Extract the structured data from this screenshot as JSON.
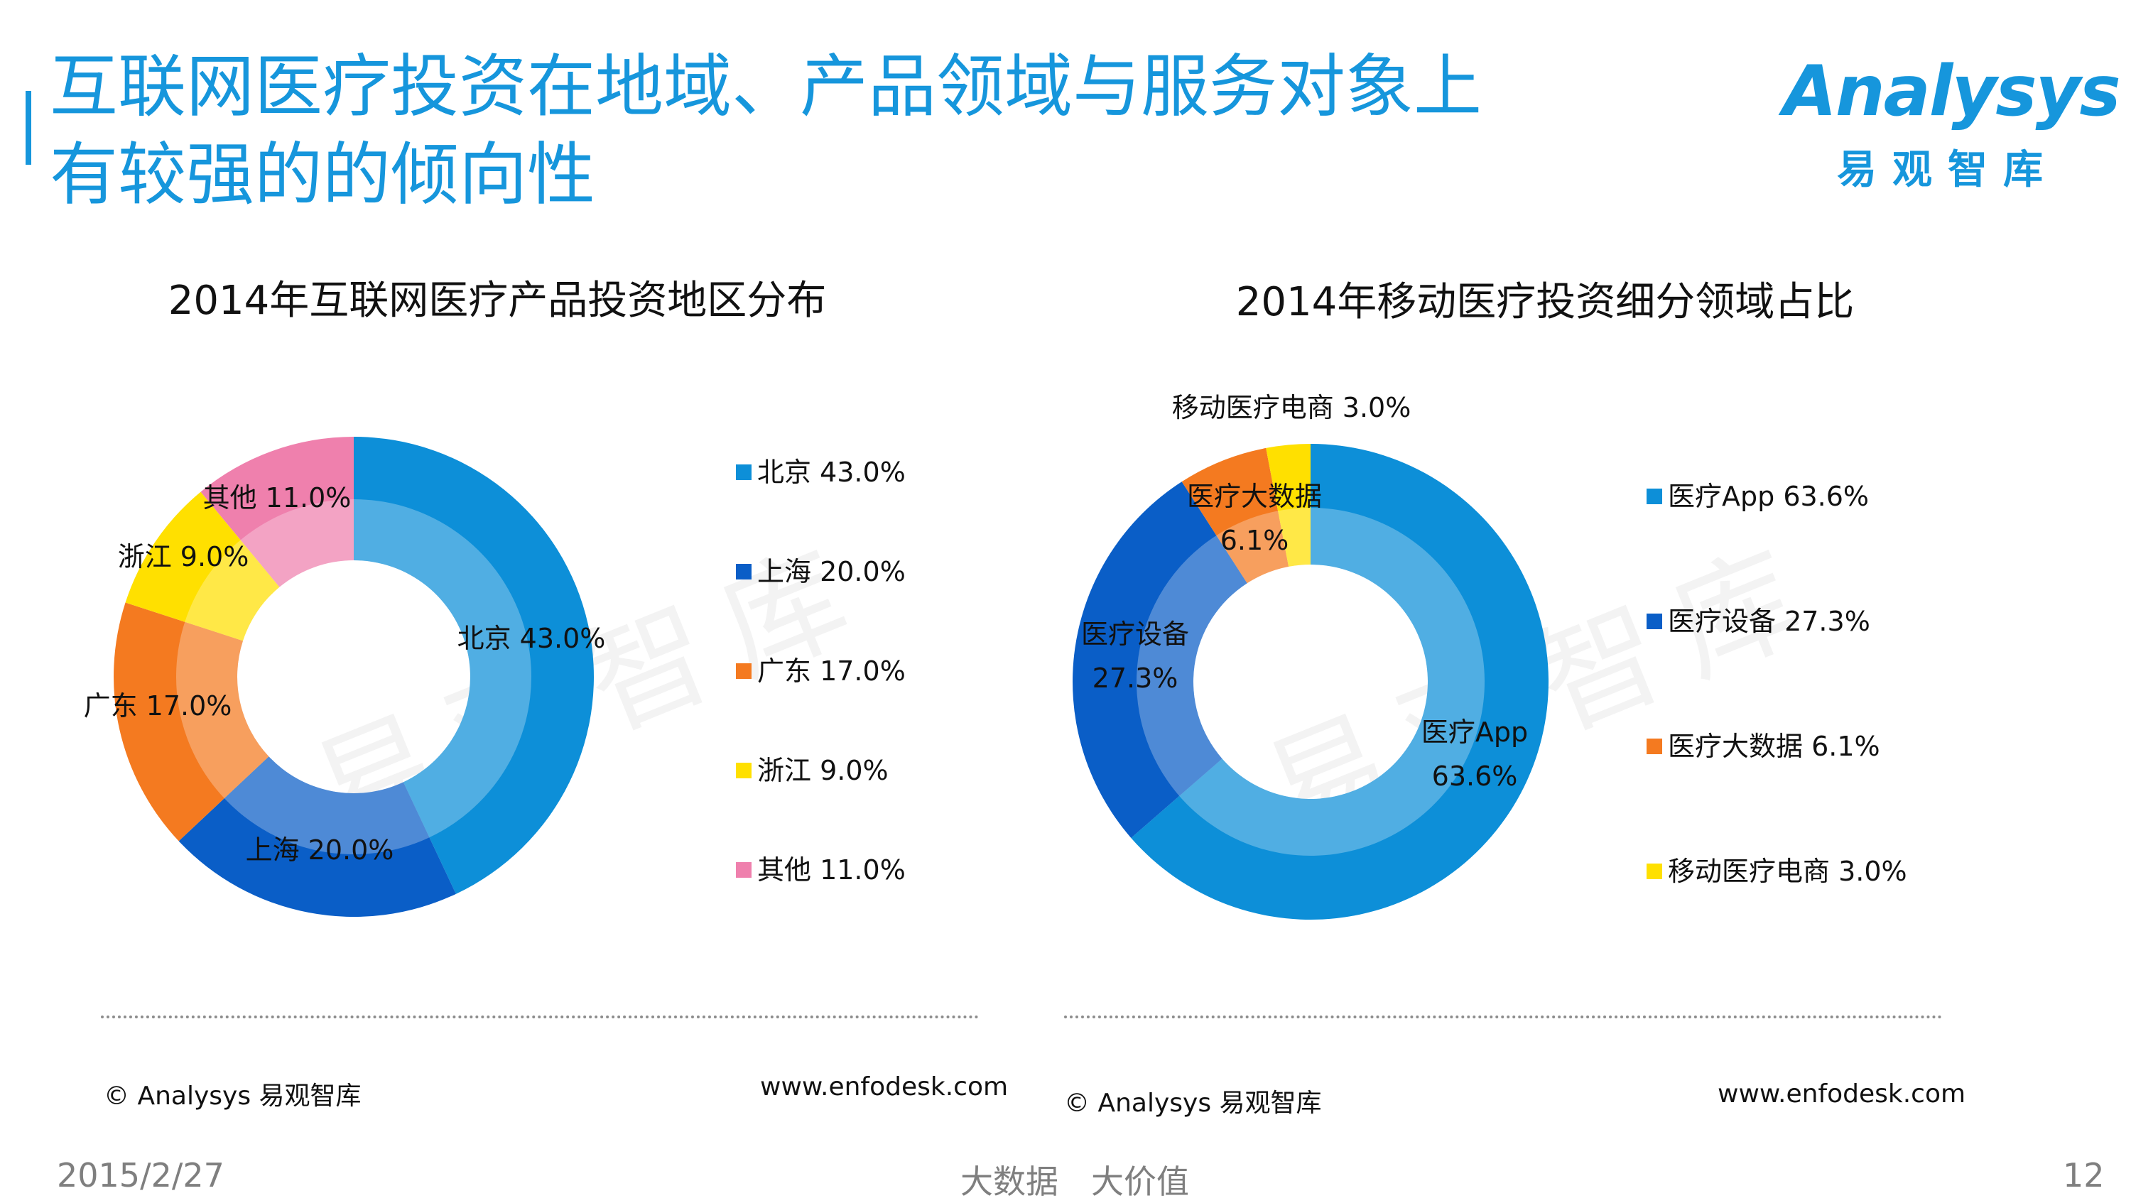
{
  "header": {
    "title_line1": "互联网医疗投资在地域、产品领域与服务对象上",
    "title_line2": "有较强的的倾向性",
    "logo_word": "Analysys",
    "logo_cn": "易观智库"
  },
  "watermark": "易观智库",
  "colors": {
    "accent": "#1696dc",
    "blue_light": "#0d8fd8",
    "blue_dark": "#0a5ec7",
    "orange": "#f47a20",
    "yellow": "#ffe000",
    "pink": "#ef80ad"
  },
  "chart_data": [
    {
      "type": "pie",
      "title": "2014年互联网医疗产品投资地区分布",
      "categories": [
        "北京",
        "上海",
        "广东",
        "浙江",
        "其他"
      ],
      "values": [
        43.0,
        20.0,
        17.0,
        9.0,
        11.0
      ],
      "value_labels": [
        "43.0%",
        "20.0%",
        "17.0%",
        "9.0%",
        "11.0%"
      ],
      "colors": [
        "#0d8fd8",
        "#0a5ec7",
        "#f47a20",
        "#ffe000",
        "#ef80ad"
      ],
      "legend": [
        {
          "label": "北京",
          "value": "43.0%"
        },
        {
          "label": "上海",
          "value": "20.0%"
        },
        {
          "label": "广东",
          "value": "17.0%"
        },
        {
          "label": "浙江",
          "value": "9.0%"
        },
        {
          "label": "其他",
          "value": "11.0%"
        }
      ],
      "legend_placement": "right",
      "footnote_left": "© Analysys 易观智库",
      "footnote_right": "www.enfodesk.com"
    },
    {
      "type": "pie",
      "title": "2014年移动医疗投资细分领域占比",
      "categories": [
        "医疗App",
        "医疗设备",
        "医疗大数据",
        "移动医疗电商"
      ],
      "values": [
        63.6,
        27.3,
        6.1,
        3.0
      ],
      "value_labels": [
        "63.6%",
        "27.3%",
        "6.1%",
        "3.0%"
      ],
      "colors": [
        "#0d8fd8",
        "#0a5ec7",
        "#f47a20",
        "#ffe000"
      ],
      "legend": [
        {
          "label": "医疗App",
          "value": "63.6%"
        },
        {
          "label": "医疗设备",
          "value": "27.3%"
        },
        {
          "label": "医疗大数据",
          "value": "6.1%"
        },
        {
          "label": "移动医疗电商",
          "value": "3.0%"
        }
      ],
      "legend_placement": "right",
      "footnote_left": "© Analysys 易观智库",
      "footnote_right": "www.enfodesk.com"
    }
  ],
  "footer": {
    "date": "2015/2/27",
    "slogan": "大数据　大价值",
    "page": "12"
  }
}
